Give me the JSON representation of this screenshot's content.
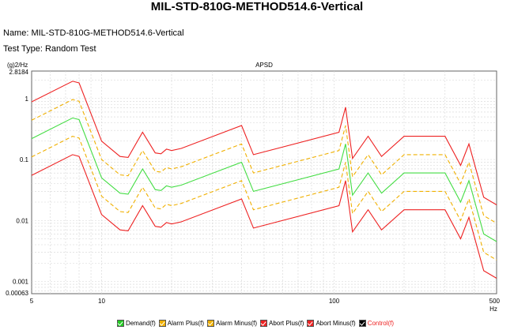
{
  "header": {
    "title": "MIL-STD-810G-METHOD514.6-Vertical",
    "name_line": "Name: MIL-STD-810G-METHOD514.6-Vertical",
    "type_line": "Test Type: Random Test"
  },
  "chart_data": {
    "type": "line",
    "title": "APSD",
    "ylabel": "(g)2/Hz",
    "xlabel": "Hz",
    "xscale": "log",
    "yscale": "log",
    "xlim": [
      5,
      500
    ],
    "ylim": [
      0.00063,
      2.8184
    ],
    "x_ticks": [
      5,
      10,
      100,
      500
    ],
    "x_tick_labels": [
      "5",
      "10",
      "100",
      "500"
    ],
    "y_ticks": [
      2.8184,
      1,
      0.1,
      0.01,
      0.001,
      0.00063
    ],
    "y_tick_labels": [
      "2.8184",
      "1",
      "0.1",
      "0.01",
      "0.001",
      "0.00063"
    ],
    "grid": true,
    "legend_position": "bottom",
    "series": [
      {
        "name": "Demand(f)",
        "color": "#44dd44",
        "points": [
          [
            5,
            0.22
          ],
          [
            7.5,
            0.48
          ],
          [
            8,
            0.45
          ],
          [
            10,
            0.05
          ],
          [
            12,
            0.028
          ],
          [
            13,
            0.027
          ],
          [
            15,
            0.07
          ],
          [
            17,
            0.032
          ],
          [
            18,
            0.031
          ],
          [
            19,
            0.037
          ],
          [
            20,
            0.035
          ],
          [
            22,
            0.038
          ],
          [
            40,
            0.09
          ],
          [
            45,
            0.03
          ],
          [
            105,
            0.07
          ],
          [
            112,
            0.18
          ],
          [
            120,
            0.026
          ],
          [
            140,
            0.06
          ],
          [
            160,
            0.028
          ],
          [
            200,
            0.06
          ],
          [
            300,
            0.06
          ],
          [
            350,
            0.02
          ],
          [
            380,
            0.045
          ],
          [
            440,
            0.006
          ],
          [
            500,
            0.0045
          ]
        ]
      },
      {
        "name": "Alarm Plus(f)",
        "color": "#f0b000",
        "points": [
          [
            5,
            0.44
          ],
          [
            7.5,
            0.96
          ],
          [
            8,
            0.9
          ],
          [
            10,
            0.1
          ],
          [
            12,
            0.056
          ],
          [
            13,
            0.054
          ],
          [
            15,
            0.14
          ],
          [
            17,
            0.064
          ],
          [
            18,
            0.062
          ],
          [
            19,
            0.074
          ],
          [
            20,
            0.07
          ],
          [
            22,
            0.076
          ],
          [
            40,
            0.18
          ],
          [
            45,
            0.06
          ],
          [
            105,
            0.14
          ],
          [
            112,
            0.36
          ],
          [
            120,
            0.052
          ],
          [
            140,
            0.12
          ],
          [
            160,
            0.056
          ],
          [
            200,
            0.12
          ],
          [
            300,
            0.12
          ],
          [
            350,
            0.04
          ],
          [
            380,
            0.09
          ],
          [
            440,
            0.012
          ],
          [
            500,
            0.009
          ]
        ]
      },
      {
        "name": "Alarm Minus(f)",
        "color": "#f0b000",
        "points": [
          [
            5,
            0.11
          ],
          [
            7.5,
            0.24
          ],
          [
            8,
            0.225
          ],
          [
            10,
            0.025
          ],
          [
            12,
            0.014
          ],
          [
            13,
            0.0135
          ],
          [
            15,
            0.035
          ],
          [
            17,
            0.016
          ],
          [
            18,
            0.0155
          ],
          [
            19,
            0.0185
          ],
          [
            20,
            0.0175
          ],
          [
            22,
            0.019
          ],
          [
            40,
            0.045
          ],
          [
            45,
            0.015
          ],
          [
            105,
            0.035
          ],
          [
            112,
            0.09
          ],
          [
            120,
            0.013
          ],
          [
            140,
            0.03
          ],
          [
            160,
            0.014
          ],
          [
            200,
            0.03
          ],
          [
            300,
            0.03
          ],
          [
            350,
            0.01
          ],
          [
            380,
            0.0225
          ],
          [
            440,
            0.003
          ],
          [
            500,
            0.00225
          ]
        ]
      },
      {
        "name": "Abort Plus(f)",
        "color": "#ee2222",
        "points": [
          [
            5,
            0.88
          ],
          [
            7.5,
            1.92
          ],
          [
            8,
            1.8
          ],
          [
            10,
            0.2
          ],
          [
            12,
            0.112
          ],
          [
            13,
            0.108
          ],
          [
            15,
            0.28
          ],
          [
            17,
            0.128
          ],
          [
            18,
            0.124
          ],
          [
            19,
            0.148
          ],
          [
            20,
            0.14
          ],
          [
            22,
            0.152
          ],
          [
            40,
            0.36
          ],
          [
            45,
            0.12
          ],
          [
            105,
            0.28
          ],
          [
            112,
            0.72
          ],
          [
            120,
            0.104
          ],
          [
            140,
            0.24
          ],
          [
            160,
            0.112
          ],
          [
            200,
            0.24
          ],
          [
            300,
            0.24
          ],
          [
            350,
            0.08
          ],
          [
            380,
            0.18
          ],
          [
            440,
            0.024
          ],
          [
            500,
            0.018
          ]
        ]
      },
      {
        "name": "Abort Minus(f)",
        "color": "#ee2222",
        "points": [
          [
            5,
            0.055
          ],
          [
            7.5,
            0.12
          ],
          [
            8,
            0.1125
          ],
          [
            10,
            0.0125
          ],
          [
            12,
            0.007
          ],
          [
            13,
            0.00675
          ],
          [
            15,
            0.0175
          ],
          [
            17,
            0.008
          ],
          [
            18,
            0.00775
          ],
          [
            19,
            0.00925
          ],
          [
            20,
            0.00875
          ],
          [
            22,
            0.0095
          ],
          [
            40,
            0.0225
          ],
          [
            45,
            0.0075
          ],
          [
            105,
            0.0175
          ],
          [
            112,
            0.045
          ],
          [
            120,
            0.0065
          ],
          [
            140,
            0.015
          ],
          [
            160,
            0.007
          ],
          [
            200,
            0.015
          ],
          [
            300,
            0.015
          ],
          [
            350,
            0.005
          ],
          [
            380,
            0.01125
          ],
          [
            440,
            0.0015
          ],
          [
            500,
            0.001125
          ]
        ]
      },
      {
        "name": "Control(f)",
        "color": "#000000",
        "points": []
      }
    ]
  },
  "legend": {
    "items": [
      {
        "label": "Demand(f)",
        "color": "#22cc22"
      },
      {
        "label": "Alarm Plus(f)",
        "color": "#f0b000"
      },
      {
        "label": "Alarm Minus(f)",
        "color": "#f0b000"
      },
      {
        "label": "Abort Plus(f)",
        "color": "#ee2222"
      },
      {
        "label": "Abort Minus(f)",
        "color": "#ee2222"
      },
      {
        "label": "Control(f)",
        "color": "#000000",
        "label_color": "#ee2222"
      }
    ]
  }
}
